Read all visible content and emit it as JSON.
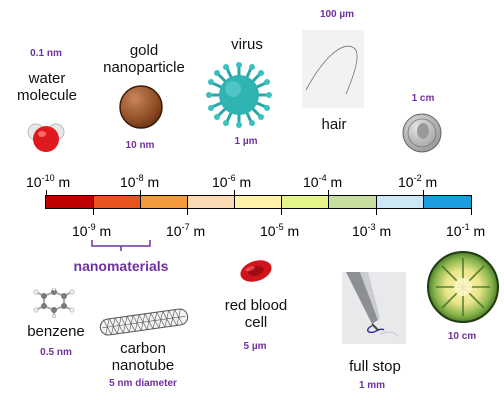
{
  "items": {
    "water": {
      "name_line1": "water",
      "name_line2": "molecule",
      "size": "0.1 nm",
      "icon": "water-molecule-icon"
    },
    "gold": {
      "name_line1": "gold",
      "name_line2": "nanoparticle",
      "size": "10 nm",
      "icon": "gold-nanoparticle-icon"
    },
    "virus": {
      "name": "virus",
      "size": "1 µm",
      "icon": "virus-icon"
    },
    "hair": {
      "name": "hair",
      "size": "100 µm",
      "icon": "hair-photo-icon"
    },
    "coin": {
      "size": "1 cm",
      "icon": "coin-icon"
    },
    "benzene": {
      "name": "benzene",
      "size": "0.5 nm",
      "icon": "benzene-icon"
    },
    "nanotube": {
      "name_line1": "carbon",
      "name_line2": "nanotube",
      "size": "5 nm diameter",
      "icon": "carbon-nanotube-icon"
    },
    "blood_cell": {
      "name_line1": "red blood",
      "name_line2": "cell",
      "size": "5 µm",
      "icon": "red-blood-cell-icon"
    },
    "full_stop": {
      "name": "full stop",
      "size": "1 mm",
      "icon": "pen-full-stop-icon"
    },
    "watermelon": {
      "size": "10 cm",
      "icon": "watermelon-icon"
    }
  },
  "scale": {
    "unit": "m",
    "base": "10",
    "top_ticks": [
      {
        "exp": "-10"
      },
      {
        "exp": "-8"
      },
      {
        "exp": "-6"
      },
      {
        "exp": "-4"
      },
      {
        "exp": "-2"
      }
    ],
    "bottom_ticks": [
      {
        "exp": "-9"
      },
      {
        "exp": "-7"
      },
      {
        "exp": "-5"
      },
      {
        "exp": "-3"
      },
      {
        "exp": "-1"
      }
    ],
    "segment_colors": [
      "#c00000",
      "#e8541e",
      "#f39a3c",
      "#fbd9b4",
      "#fff2a8",
      "#e4f38a",
      "#c6dfa0",
      "#cce8f4",
      "#1a9ee0"
    ]
  },
  "nanomaterials": {
    "label": "nanomaterials",
    "color": "#7030a0"
  }
}
